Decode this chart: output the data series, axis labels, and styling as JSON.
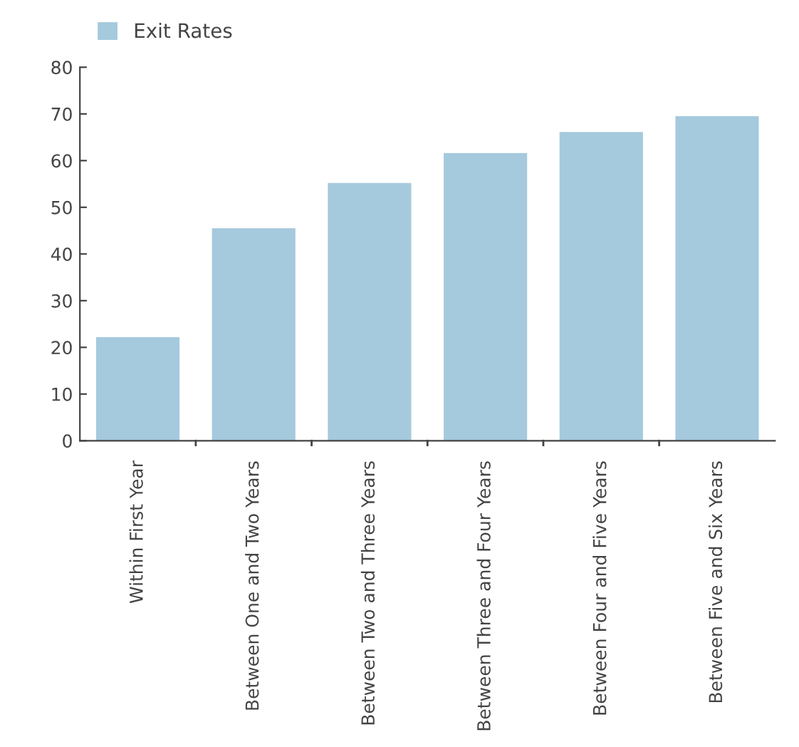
{
  "chart_data": {
    "type": "bar",
    "categories": [
      "Within First Year",
      "Between One and Two Years",
      "Between Two and Three Years",
      "Between Three and Four Years",
      "Between Four and Five Years",
      "Between Five and Six Years"
    ],
    "series": [
      {
        "name": "Exit Rates",
        "color": "#a5c9dd",
        "values": [
          22.2,
          45.5,
          55.2,
          61.6,
          66.1,
          69.5
        ]
      }
    ],
    "ylim": [
      0,
      80
    ],
    "yticks": [
      0,
      10,
      20,
      30,
      40,
      50,
      60,
      70,
      80
    ],
    "grid": false,
    "legend": "top left"
  }
}
